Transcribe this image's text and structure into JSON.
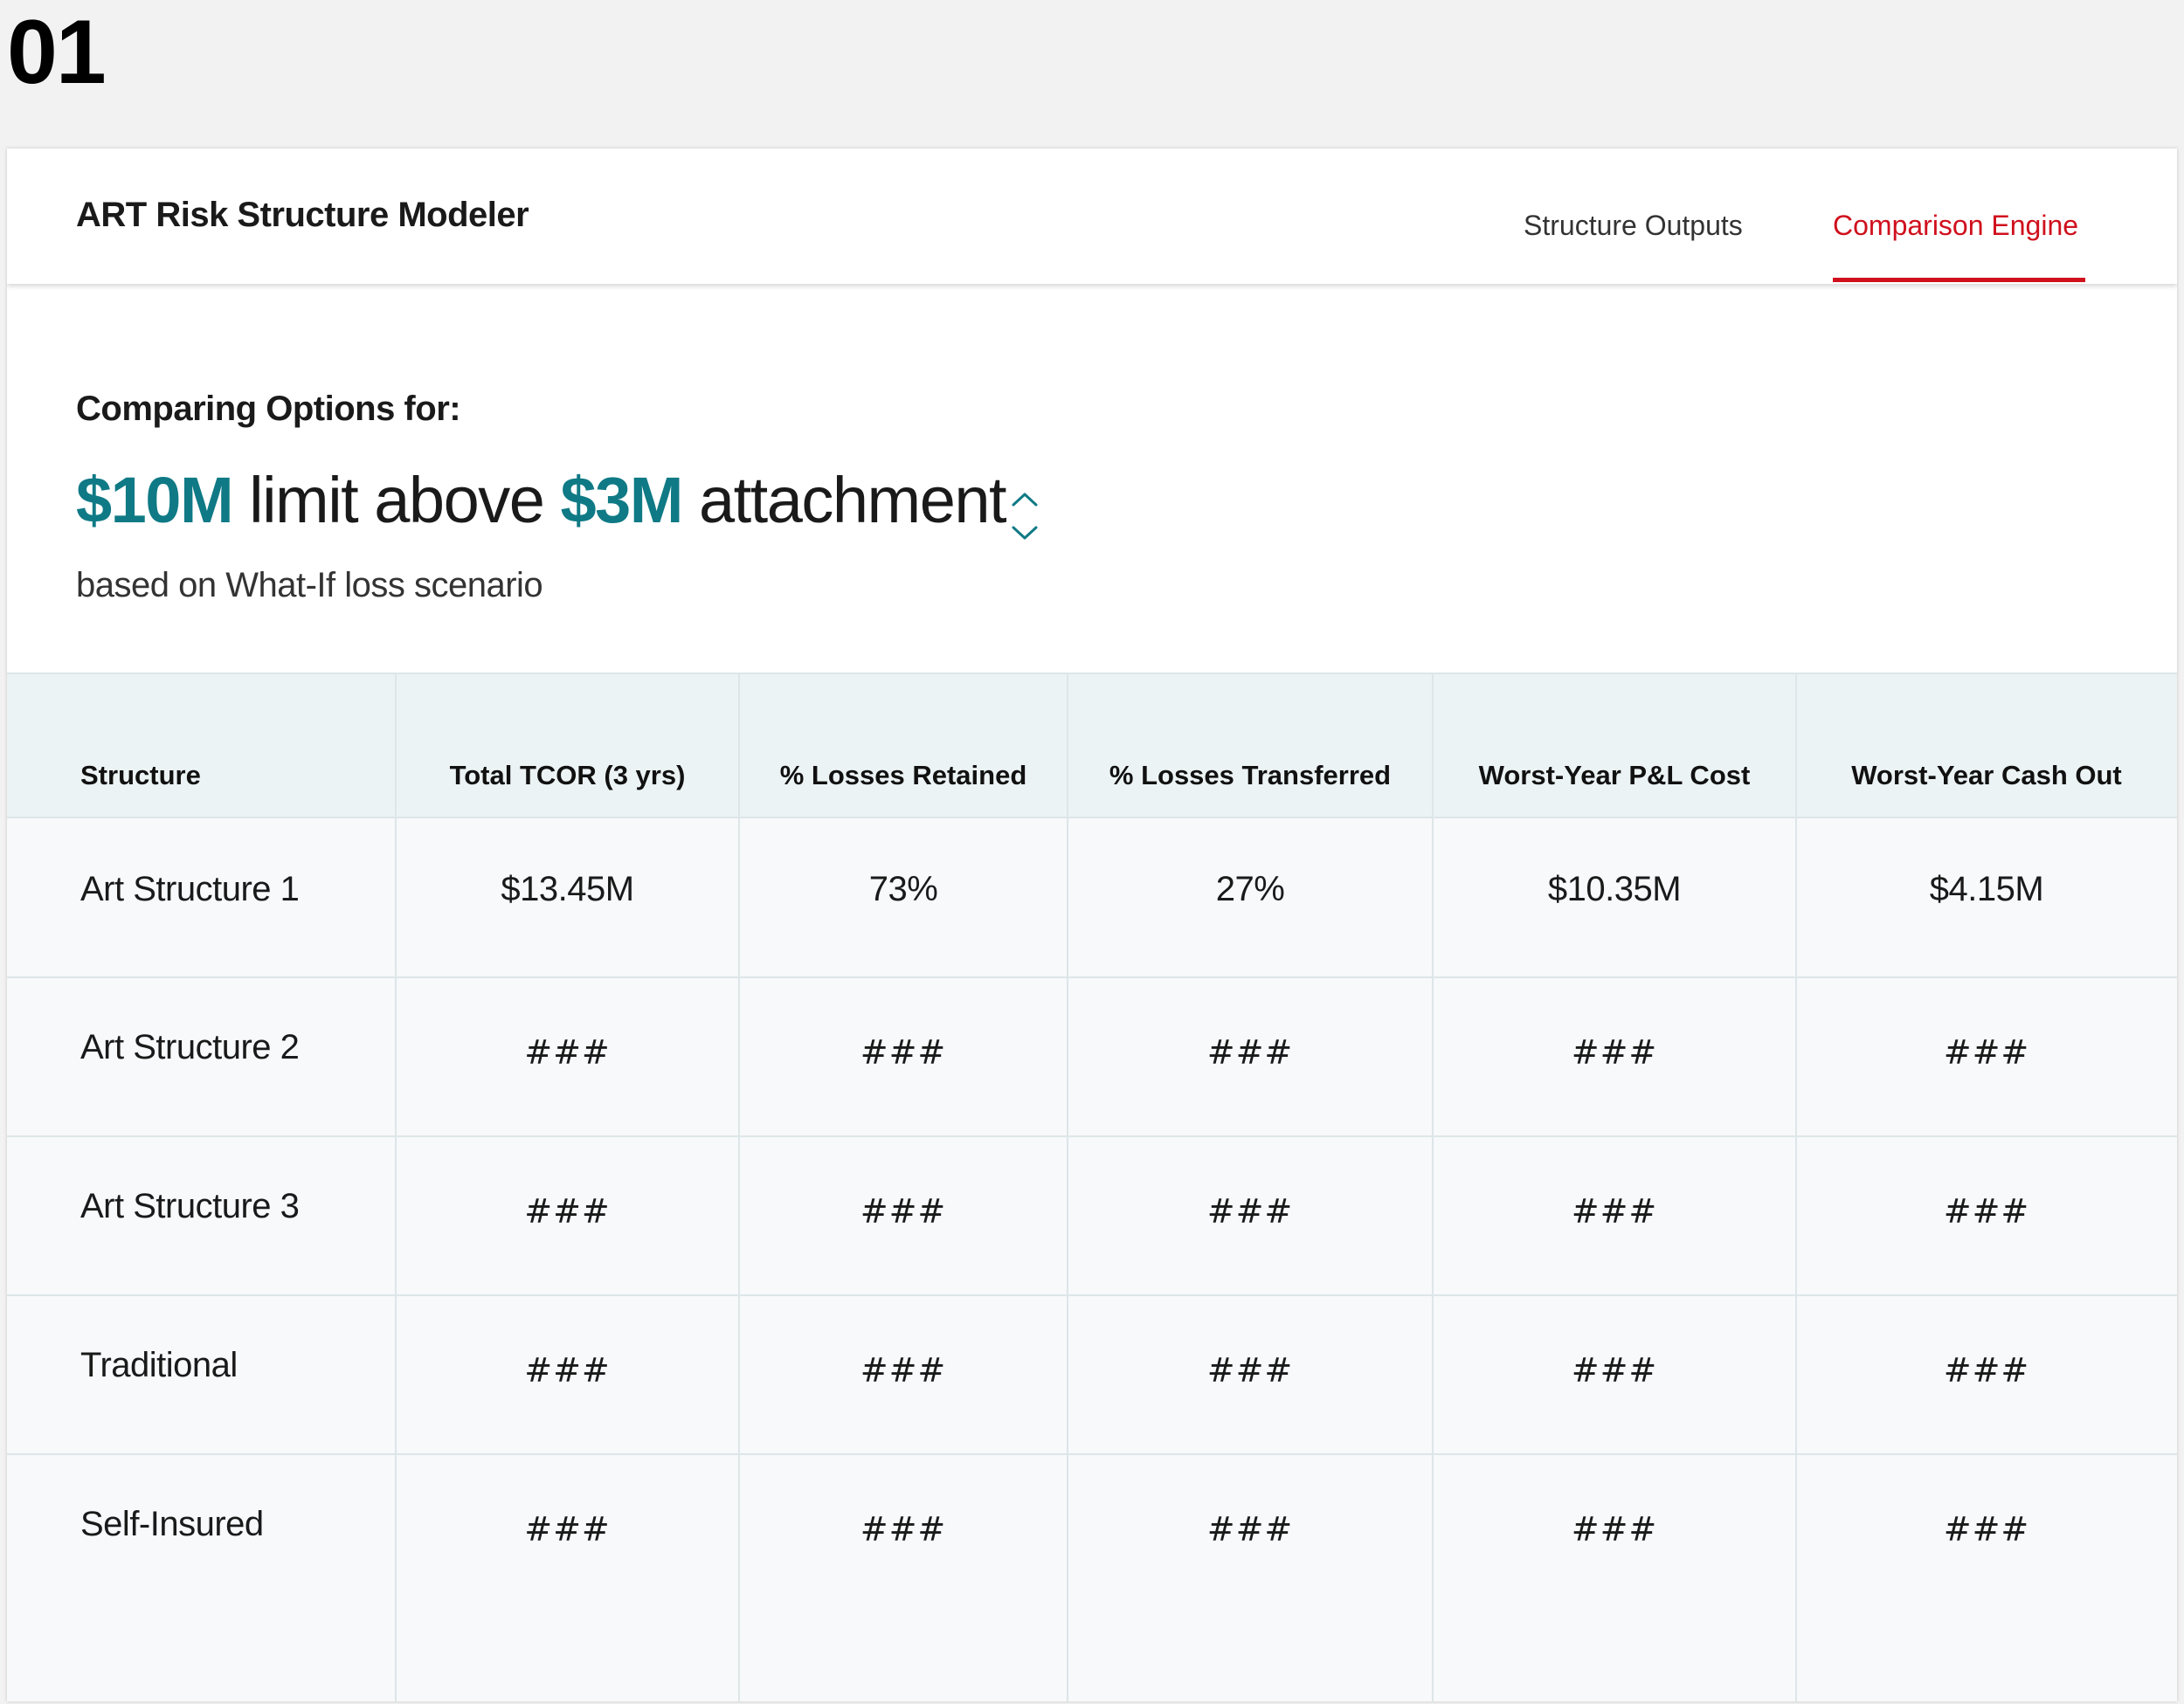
{
  "step_number": "01",
  "app": {
    "title": "ART Risk Structure Modeler",
    "tabs": [
      {
        "label": "Structure Outputs",
        "active": false
      },
      {
        "label": "Comparison Engine",
        "active": true
      }
    ]
  },
  "comparison": {
    "label": "Comparing Options for:",
    "limit_value": "$10M",
    "limit_text": "limit above",
    "attachment_value": "$3M",
    "attachment_text": "attachment",
    "basis": "based on What-If loss scenario"
  },
  "table": {
    "columns": [
      "Structure",
      "Total TCOR (3 yrs)",
      "% Losses Retained",
      "% Losses Transferred",
      "Worst-Year P&L Cost",
      "Worst-Year Cash Out"
    ],
    "rows": [
      [
        "Art Structure 1",
        "$13.45M",
        "73%",
        "27%",
        "$10.35M",
        "$4.15M"
      ],
      [
        "Art Structure 2",
        "###",
        "###",
        "###",
        "###",
        "###"
      ],
      [
        "Art Structure 3",
        "###",
        "###",
        "###",
        "###",
        "###"
      ],
      [
        "Traditional",
        "###",
        "###",
        "###",
        "###",
        "###"
      ],
      [
        "Self-Insured",
        "###",
        "###",
        "###",
        "###",
        "###"
      ]
    ]
  },
  "colors": {
    "accent": "#0f7a85",
    "active_tab": "#d0101d",
    "header_row_bg": "#ecf3f4"
  },
  "icons": {
    "stepper": "chevron-up-down-icon"
  }
}
